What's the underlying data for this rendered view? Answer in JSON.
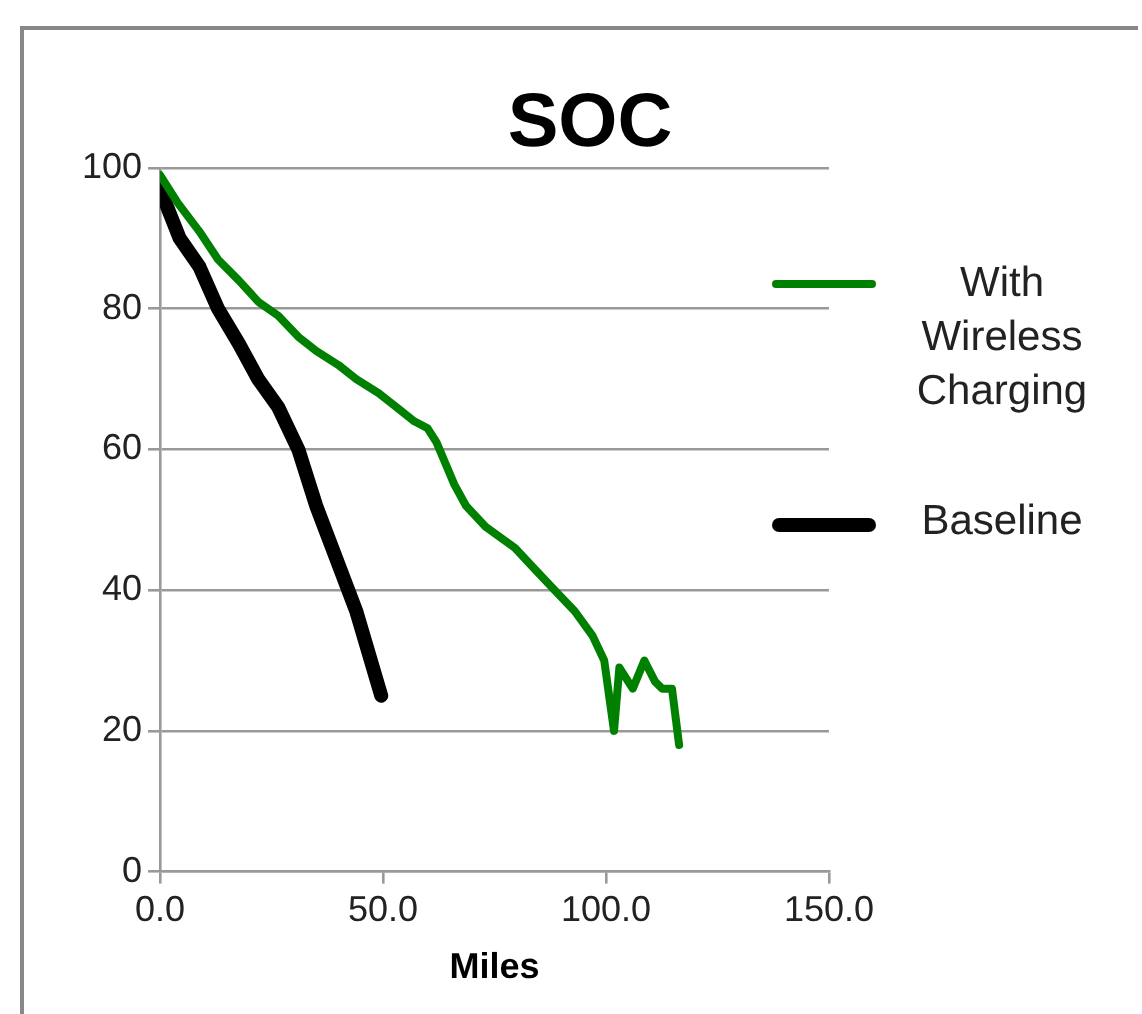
{
  "chart_data": {
    "type": "line",
    "title": "SOC",
    "xlabel": "Miles",
    "xlim": [
      0,
      150
    ],
    "ylim": [
      0,
      100
    ],
    "xticks": [
      {
        "value": 0,
        "label": "0.0"
      },
      {
        "value": 50,
        "label": "50.0"
      },
      {
        "value": 100,
        "label": "100.0"
      },
      {
        "value": 150,
        "label": "150.0"
      }
    ],
    "yticks": [
      0,
      20,
      40,
      60,
      80,
      100
    ],
    "grid": "y",
    "legend": "right",
    "marker": "none",
    "line_style": "solid",
    "series": [
      {
        "name": "With Wireless Charging",
        "color": "#008000",
        "x": [
          0,
          4,
          8.8,
          13,
          17.7,
          22,
          26.5,
          31,
          35,
          40,
          44,
          49,
          53,
          57,
          60,
          62,
          64,
          66,
          68.6,
          73,
          79.6,
          84,
          88.5,
          93,
          97,
          99.6,
          101.8,
          103,
          106,
          108.6,
          111,
          112.6,
          114.8,
          116.4
        ],
        "values": [
          99,
          95,
          91,
          87,
          84,
          81,
          79,
          76,
          74,
          72,
          70,
          68,
          66,
          64,
          63,
          61,
          58,
          55,
          52,
          49,
          46,
          43,
          40,
          37,
          33.5,
          30,
          20,
          29,
          26,
          30,
          27,
          26,
          26,
          18
        ]
      },
      {
        "name": "Baseline",
        "color": "#000000",
        "x": [
          0,
          4.4,
          8.8,
          13,
          17.7,
          22,
          26.5,
          31,
          35,
          39.8,
          44,
          49.6
        ],
        "values": [
          97,
          90,
          86,
          80,
          75,
          70,
          66,
          60,
          52,
          44,
          37,
          25
        ]
      }
    ]
  }
}
